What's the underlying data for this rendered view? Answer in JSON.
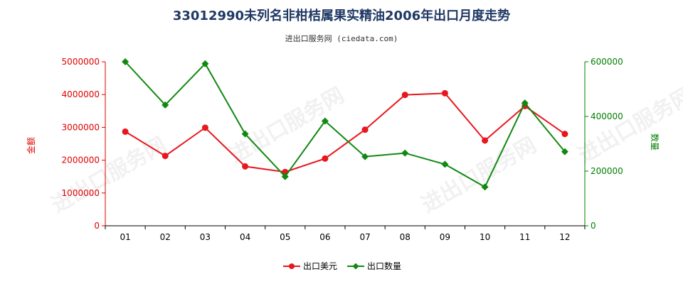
{
  "chart_data": {
    "type": "line",
    "title": "33012990未列名非柑桔属果实精油2006年出口月度走势",
    "subtitle": "进出口服务网 (ciedata.com)",
    "watermark": "进出口服务网",
    "categories": [
      "01",
      "02",
      "03",
      "04",
      "05",
      "06",
      "07",
      "08",
      "09",
      "10",
      "11",
      "12"
    ],
    "left_axis": {
      "label": "金额",
      "ylim": [
        0,
        5000000
      ],
      "ticks": [
        "0",
        "1000000",
        "2000000",
        "3000000",
        "4000000",
        "5000000"
      ]
    },
    "right_axis": {
      "label": "数量",
      "ylim": [
        0,
        600000
      ],
      "ticks": [
        "0",
        "200000",
        "400000",
        "600000"
      ]
    },
    "series": [
      {
        "name": "出口美元",
        "axis": "left",
        "color": "#e8161d",
        "values": [
          2870000,
          2130000,
          2990000,
          1810000,
          1640000,
          2050000,
          2930000,
          3990000,
          4040000,
          2600000,
          3650000,
          2800000
        ]
      },
      {
        "name": "出口数量",
        "axis": "right",
        "color": "#118811",
        "values": [
          600000,
          442000,
          593000,
          336000,
          180000,
          383000,
          253000,
          266000,
          225000,
          142000,
          449000,
          271000
        ]
      }
    ],
    "grid": false,
    "legend_position": "bottom-center"
  }
}
